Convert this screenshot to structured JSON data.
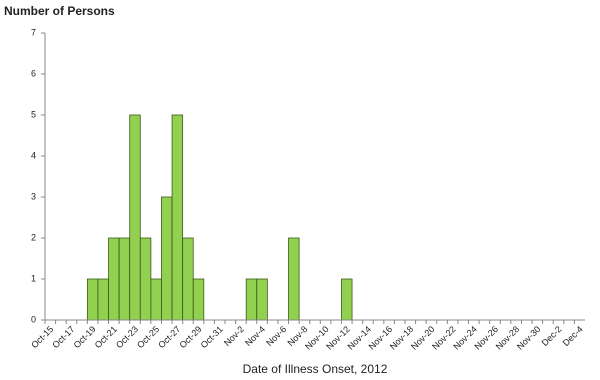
{
  "chart_data": {
    "type": "bar",
    "title": "Number of Persons",
    "x_label": "Date of Illness Onset, 2012",
    "categories": [
      "Oct-15",
      null,
      "Oct-17",
      null,
      "Oct-19",
      null,
      "Oct-21",
      null,
      "Oct-23",
      null,
      "Oct-25",
      null,
      "Oct-27",
      null,
      "Oct-29",
      null,
      "Oct-31",
      null,
      "Nov-2",
      null,
      "Nov-4",
      null,
      "Nov-6",
      null,
      "Nov-8",
      null,
      "Nov-10",
      null,
      "Nov-12",
      null,
      "Nov-14",
      null,
      "Nov-16",
      null,
      "Nov-18",
      null,
      "Nov-20",
      null,
      "Nov-22",
      null,
      "Nov-24",
      null,
      "Nov-26",
      null,
      "Nov-28",
      null,
      "Nov-30",
      null,
      "Dec-2",
      null,
      "Dec-4"
    ],
    "values": [
      0,
      0,
      0,
      0,
      1,
      1,
      2,
      2,
      5,
      2,
      1,
      3,
      5,
      2,
      1,
      0,
      0,
      0,
      0,
      1,
      1,
      0,
      0,
      2,
      0,
      0,
      0,
      0,
      1,
      0,
      0,
      0,
      0,
      0,
      0,
      0,
      0,
      0,
      0,
      0,
      0,
      0,
      0,
      0,
      0,
      0,
      0,
      0,
      0,
      0,
      0
    ],
    "color": "#92d050",
    "ylim": [
      0,
      7
    ],
    "yticks": [
      0,
      1,
      2,
      3,
      4,
      5,
      6,
      7
    ],
    "grid": false
  }
}
